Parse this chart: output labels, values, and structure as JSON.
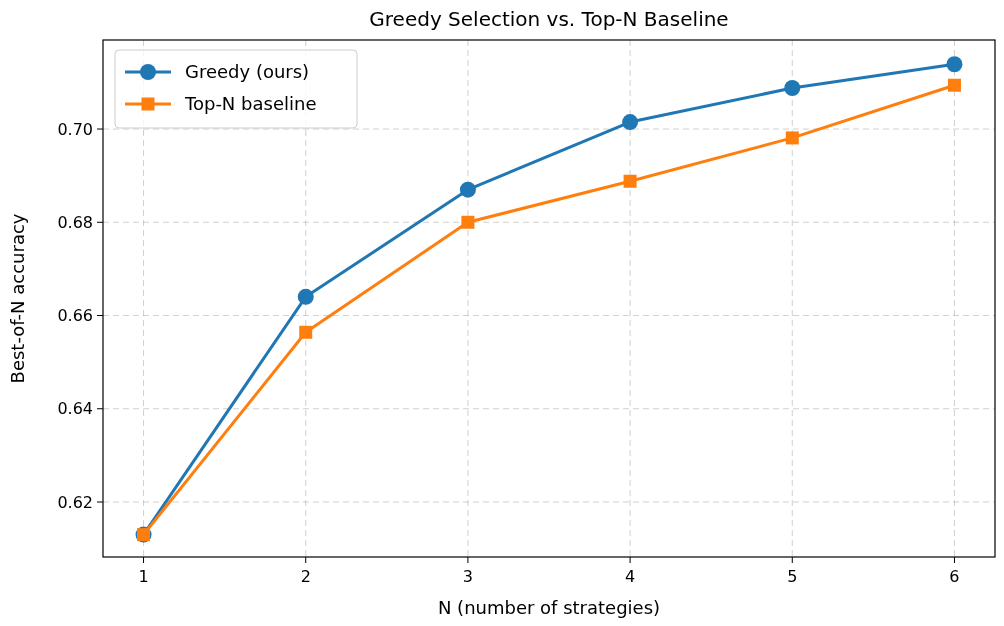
{
  "chart_data": {
    "type": "line",
    "title": "Greedy Selection vs. Top-N Baseline",
    "xlabel": "N (number of strategies)",
    "ylabel": "Best-of-N accuracy",
    "x": [
      1,
      2,
      3,
      4,
      5,
      6
    ],
    "series": [
      {
        "name": "Greedy (ours)",
        "color": "#1f77b4",
        "marker": "circle",
        "values": [
          0.613,
          0.664,
          0.687,
          0.7015,
          0.7088,
          0.7139
        ]
      },
      {
        "name": "Top-N baseline",
        "color": "#ff7f0e",
        "marker": "square",
        "values": [
          0.613,
          0.6564,
          0.68,
          0.6888,
          0.6981,
          0.7094
        ]
      }
    ],
    "xlim": [
      0.75,
      6.25
    ],
    "xticks": [
      1,
      2,
      3,
      4,
      5,
      6
    ],
    "ylim": [
      0.6082,
      0.7191
    ],
    "yticks": [
      {
        "value": 0.62,
        "label": "0.62"
      },
      {
        "value": 0.64,
        "label": "0.64"
      },
      {
        "value": 0.66,
        "label": "0.66"
      },
      {
        "value": 0.68,
        "label": "0.68"
      },
      {
        "value": 0.7,
        "label": "0.70"
      }
    ],
    "grid": true,
    "line_style": "solid",
    "legend": "top left"
  }
}
